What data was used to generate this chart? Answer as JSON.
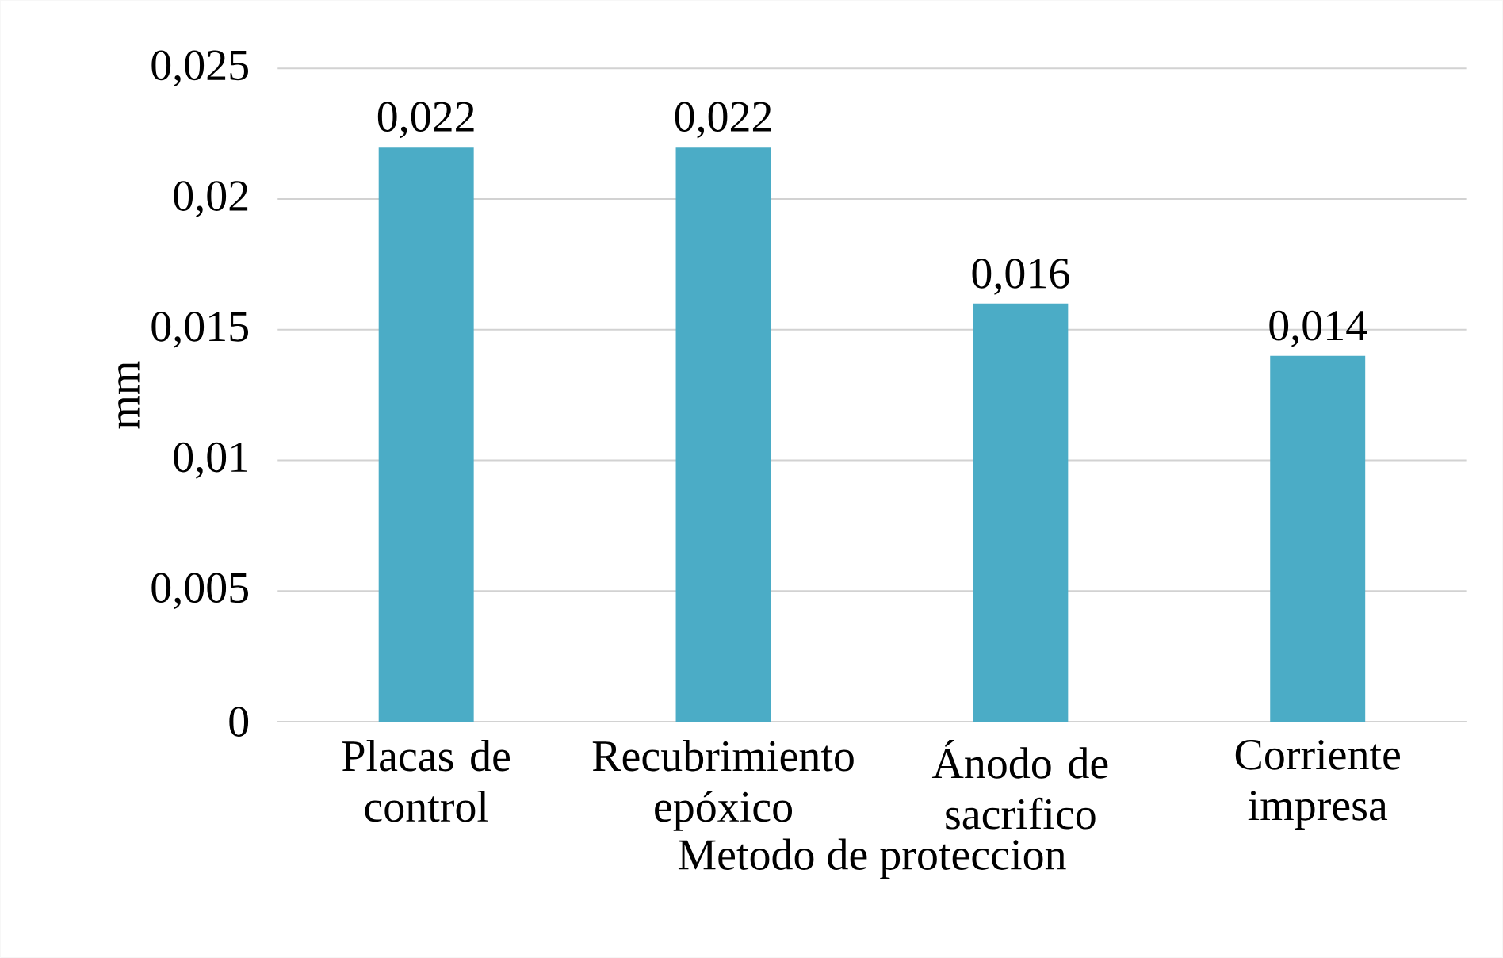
{
  "chart_data": {
    "type": "bar",
    "xlabel": "Metodo de proteccion",
    "ylabel": "mm",
    "categories": [
      "Placas de control",
      "Recubrimiento epóxico",
      "Ánodo de sacrifico",
      "Corriente impresa"
    ],
    "values": [
      0.022,
      0.022,
      0.016,
      0.014
    ],
    "value_labels": [
      "0,022",
      "0,022",
      "0,016",
      "0,014"
    ],
    "color": "#4bacc6",
    "ylim": [
      0,
      0.025
    ],
    "yticks": [
      {
        "value": 0,
        "label": "0"
      },
      {
        "value": 0.005,
        "label": "0,005"
      },
      {
        "value": 0.01,
        "label": "0,01"
      },
      {
        "value": 0.015,
        "label": "0,015"
      },
      {
        "value": 0.02,
        "label": "0,02"
      },
      {
        "value": 0.025,
        "label": "0,025"
      }
    ],
    "grid": "y"
  }
}
